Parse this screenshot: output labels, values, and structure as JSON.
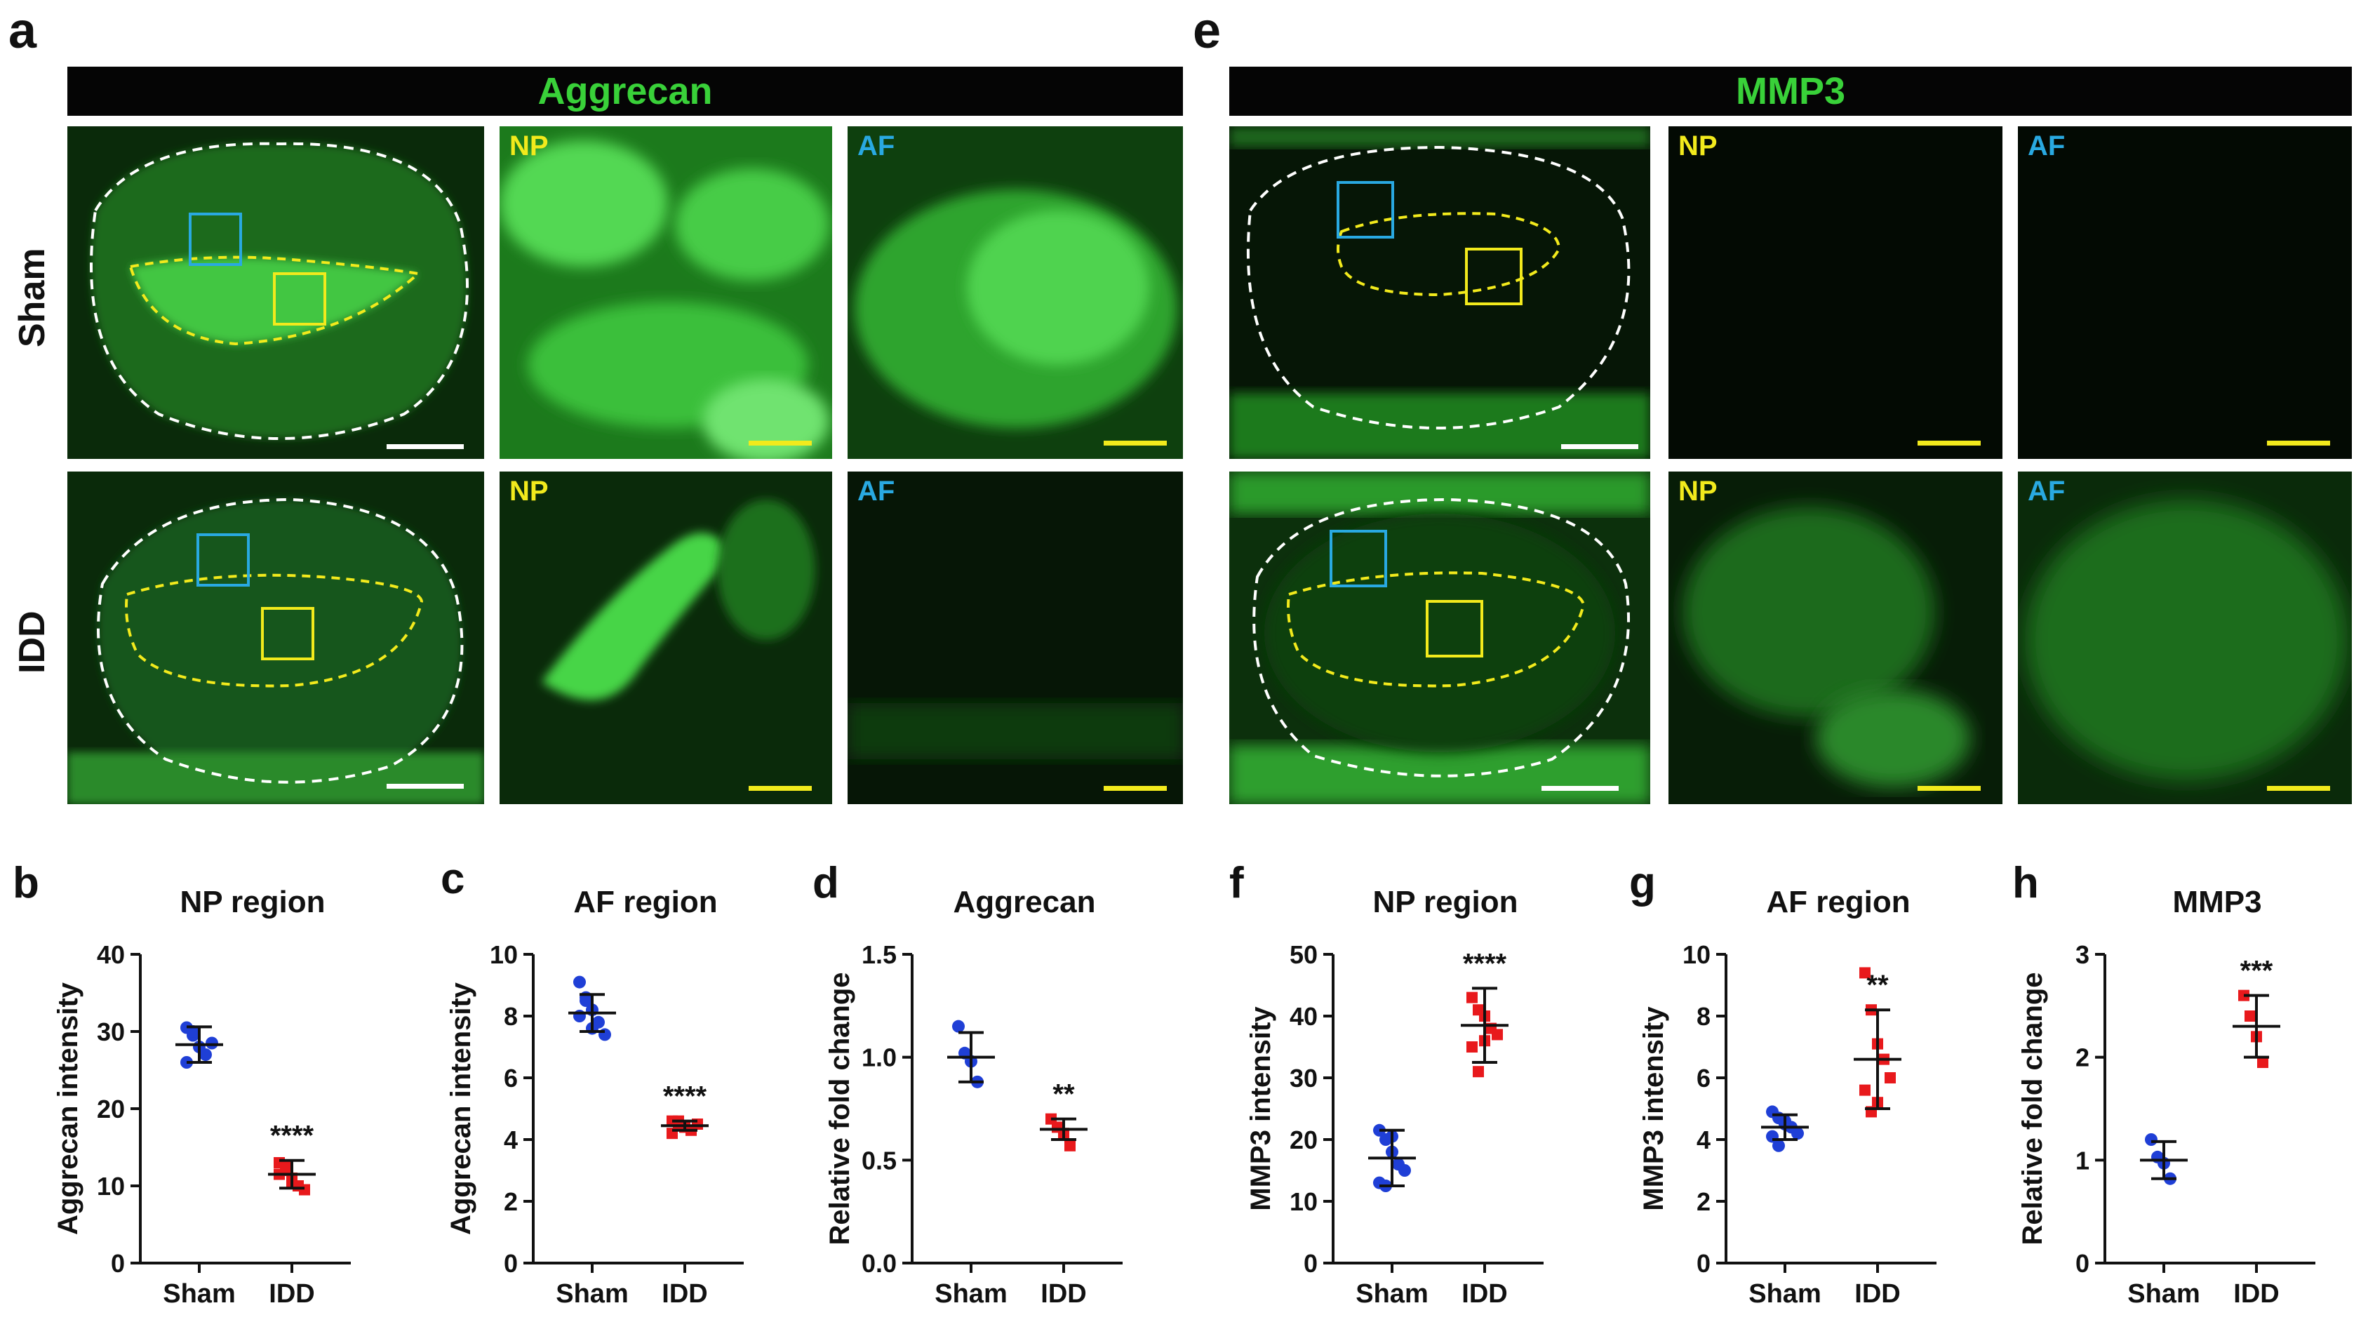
{
  "panel_labels": {
    "a": "a",
    "b": "b",
    "c": "c",
    "d": "d",
    "e": "e",
    "f": "f",
    "g": "g",
    "h": "h"
  },
  "headers": {
    "aggrecan": "Aggrecan",
    "mmp3": "MMP3"
  },
  "rows": {
    "sham": "Sham",
    "idd": "IDD"
  },
  "region_labels": {
    "np": "NP",
    "af": "AF"
  },
  "colors": {
    "sham": "#1f3fd6",
    "idd": "#e8191c",
    "stain": "#2fd12f",
    "np_label": "#f2ea1c",
    "af_label": "#29a9e1"
  },
  "chart_data": [
    {
      "type": "scatter",
      "title": "NP region",
      "ylabel": "Aggrecan intensity",
      "categories": [
        "Sham",
        "IDD"
      ],
      "ylim": [
        0,
        40
      ],
      "yticks": [
        0,
        10,
        20,
        30,
        40
      ],
      "means": [
        28.3,
        11.5
      ],
      "errors": [
        2.3,
        1.8
      ],
      "points": [
        [
          30.5,
          29.5,
          28,
          27,
          28.5,
          26,
          30
        ],
        [
          13,
          12.5,
          11,
          10,
          9.5,
          11.5,
          12,
          10.5
        ]
      ],
      "significance": "****"
    },
    {
      "type": "scatter",
      "title": "AF region",
      "ylabel": "Aggrecan intensity",
      "categories": [
        "Sham",
        "IDD"
      ],
      "ylim": [
        0,
        10
      ],
      "yticks": [
        0,
        2,
        4,
        6,
        8,
        10
      ],
      "means": [
        8.1,
        4.45
      ],
      "errors": [
        0.6,
        0.15
      ],
      "points": [
        [
          9.1,
          8.6,
          8.2,
          7.8,
          7.4,
          8.0,
          8.5,
          7.6
        ],
        [
          4.6,
          4.5,
          4.4,
          4.3,
          4.5,
          4.2,
          4.6
        ]
      ],
      "significance": "****"
    },
    {
      "type": "scatter",
      "title": "Aggrecan",
      "ylabel": "Relative fold change",
      "categories": [
        "Sham",
        "IDD"
      ],
      "ylim": [
        0,
        1.5
      ],
      "yticks": [
        "0.0",
        "0.5",
        "1.0",
        "1.5"
      ],
      "means": [
        1.0,
        0.65
      ],
      "errors": [
        0.12,
        0.05
      ],
      "points": [
        [
          1.15,
          1.02,
          0.98,
          0.88
        ],
        [
          0.7,
          0.66,
          0.63,
          0.57
        ]
      ],
      "significance": "**"
    },
    {
      "type": "scatter",
      "title": "NP region",
      "ylabel": "MMP3 intensity",
      "categories": [
        "Sham",
        "IDD"
      ],
      "ylim": [
        0,
        50
      ],
      "yticks": [
        0,
        10,
        20,
        30,
        40,
        50
      ],
      "means": [
        17,
        38.5
      ],
      "errors": [
        4.5,
        6
      ],
      "points": [
        [
          21.5,
          20,
          18,
          16,
          15,
          13,
          12.5,
          20.5
        ],
        [
          43,
          41,
          40,
          38,
          37,
          35,
          31,
          36
        ]
      ],
      "significance": "****"
    },
    {
      "type": "scatter",
      "title": "AF region",
      "ylabel": "MMP3 intensity",
      "categories": [
        "Sham",
        "IDD"
      ],
      "ylim": [
        0,
        10
      ],
      "yticks": [
        0,
        2,
        4,
        6,
        8,
        10
      ],
      "means": [
        4.4,
        6.6
      ],
      "errors": [
        0.4,
        1.6
      ],
      "points": [
        [
          4.9,
          4.7,
          4.5,
          4.4,
          4.2,
          4.1,
          3.8,
          4.6
        ],
        [
          9.4,
          8.2,
          7.1,
          6.6,
          6.0,
          5.6,
          4.9,
          5.2
        ]
      ],
      "significance": "**"
    },
    {
      "type": "scatter",
      "title": "MMP3",
      "ylabel": "Relative fold change",
      "categories": [
        "Sham",
        "IDD"
      ],
      "ylim": [
        0,
        3
      ],
      "yticks": [
        0,
        1,
        2,
        3
      ],
      "means": [
        1.0,
        2.3
      ],
      "errors": [
        0.18,
        0.3
      ],
      "points": [
        [
          1.2,
          1.03,
          0.97,
          0.82
        ],
        [
          2.6,
          2.4,
          2.2,
          1.95
        ]
      ],
      "significance": "***"
    }
  ]
}
